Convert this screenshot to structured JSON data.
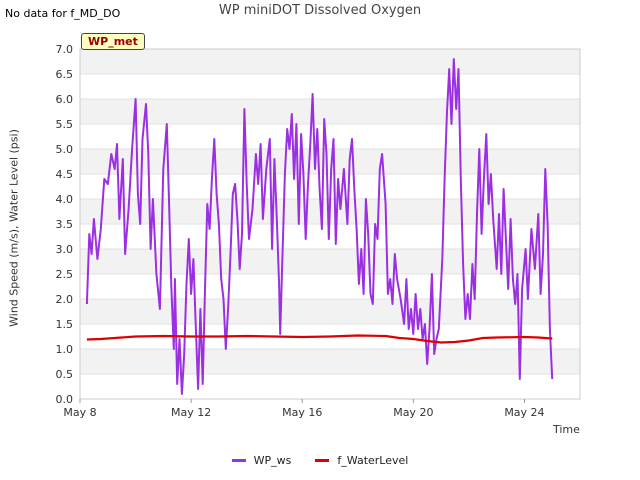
{
  "note": "No data for f_MD_DO",
  "badge": "WP_met",
  "chart_data": {
    "type": "line",
    "title": "WP miniDOT Dissolved Oxygen",
    "xlabel": "Time",
    "ylabel": "Wind Speed (m/s), Water Level (psi)",
    "xlim": [
      "2024-05-08",
      "2024-05-26"
    ],
    "ylim": [
      0,
      7
    ],
    "yticks": [
      0.0,
      0.5,
      1.0,
      1.5,
      2.0,
      2.5,
      3.0,
      3.5,
      4.0,
      4.5,
      5.0,
      5.5,
      6.0,
      6.5,
      7.0
    ],
    "ytick_labels": [
      "0.0",
      "0.5",
      "1.0",
      "1.5",
      "2.0",
      "2.5",
      "3.0",
      "3.5",
      "4.0",
      "4.5",
      "5.0",
      "5.5",
      "6.0",
      "6.5",
      "7.0"
    ],
    "xticks": [
      "2024-05-08",
      "2024-05-12",
      "2024-05-16",
      "2024-05-20",
      "2024-05-24"
    ],
    "xtick_labels": [
      "May 8",
      "May 12",
      "May 16",
      "May 20",
      "May 24"
    ],
    "grid": true,
    "legend_position": "bottom",
    "series": [
      {
        "name": "WP_ws",
        "color": "#9b30e0",
        "points": [
          [
            "2024-05-08 06:00",
            1.9
          ],
          [
            "2024-05-08 08:00",
            3.3
          ],
          [
            "2024-05-08 10:00",
            2.9
          ],
          [
            "2024-05-08 12:00",
            3.6
          ],
          [
            "2024-05-08 15:00",
            2.8
          ],
          [
            "2024-05-08 18:00",
            3.4
          ],
          [
            "2024-05-08 21:00",
            4.4
          ],
          [
            "2024-05-09 00:00",
            4.3
          ],
          [
            "2024-05-09 03:00",
            4.9
          ],
          [
            "2024-05-09 06:00",
            4.6
          ],
          [
            "2024-05-09 08:00",
            5.1
          ],
          [
            "2024-05-09 10:00",
            3.6
          ],
          [
            "2024-05-09 13:00",
            4.8
          ],
          [
            "2024-05-09 15:00",
            2.9
          ],
          [
            "2024-05-09 18:00",
            3.8
          ],
          [
            "2024-05-09 21:00",
            5.0
          ],
          [
            "2024-05-10 00:00",
            6.0
          ],
          [
            "2024-05-10 02:00",
            4.1
          ],
          [
            "2024-05-10 04:00",
            3.5
          ],
          [
            "2024-05-10 06:00",
            5.2
          ],
          [
            "2024-05-10 09:00",
            5.9
          ],
          [
            "2024-05-10 11:00",
            4.9
          ],
          [
            "2024-05-10 13:00",
            3.0
          ],
          [
            "2024-05-10 15:00",
            4.0
          ],
          [
            "2024-05-10 18:00",
            2.5
          ],
          [
            "2024-05-10 21:00",
            1.8
          ],
          [
            "2024-05-11 00:00",
            4.6
          ],
          [
            "2024-05-11 03:00",
            5.5
          ],
          [
            "2024-05-11 05:00",
            3.9
          ],
          [
            "2024-05-11 07:00",
            2.2
          ],
          [
            "2024-05-11 09:00",
            1.0
          ],
          [
            "2024-05-11 10:00",
            2.4
          ],
          [
            "2024-05-11 12:00",
            0.3
          ],
          [
            "2024-05-11 14:00",
            1.2
          ],
          [
            "2024-05-11 16:00",
            0.1
          ],
          [
            "2024-05-11 18:00",
            0.9
          ],
          [
            "2024-05-11 20:00",
            2.3
          ],
          [
            "2024-05-11 22:00",
            3.2
          ],
          [
            "2024-05-12 00:00",
            2.1
          ],
          [
            "2024-05-12 02:00",
            2.8
          ],
          [
            "2024-05-12 04:00",
            1.5
          ],
          [
            "2024-05-12 06:00",
            0.2
          ],
          [
            "2024-05-12 08:00",
            1.8
          ],
          [
            "2024-05-12 10:00",
            0.3
          ],
          [
            "2024-05-12 12:00",
            2.2
          ],
          [
            "2024-05-12 14:00",
            3.9
          ],
          [
            "2024-05-12 16:00",
            3.4
          ],
          [
            "2024-05-12 18:00",
            4.4
          ],
          [
            "2024-05-12 20:00",
            5.2
          ],
          [
            "2024-05-12 22:00",
            4.1
          ],
          [
            "2024-05-13 00:00",
            3.5
          ],
          [
            "2024-05-13 02:00",
            2.4
          ],
          [
            "2024-05-13 04:00",
            2.0
          ],
          [
            "2024-05-13 06:00",
            1.0
          ],
          [
            "2024-05-13 08:00",
            1.8
          ],
          [
            "2024-05-13 10:00",
            2.9
          ],
          [
            "2024-05-13 12:00",
            4.1
          ],
          [
            "2024-05-13 14:00",
            4.3
          ],
          [
            "2024-05-13 16:00",
            3.6
          ],
          [
            "2024-05-13 18:00",
            2.6
          ],
          [
            "2024-05-13 20:00",
            3.3
          ],
          [
            "2024-05-13 22:00",
            5.8
          ],
          [
            "2024-05-14 00:00",
            4.3
          ],
          [
            "2024-05-14 02:00",
            3.2
          ],
          [
            "2024-05-14 05:00",
            3.8
          ],
          [
            "2024-05-14 08:00",
            4.9
          ],
          [
            "2024-05-14 10:00",
            4.3
          ],
          [
            "2024-05-14 12:00",
            5.1
          ],
          [
            "2024-05-14 14:00",
            3.6
          ],
          [
            "2024-05-14 17:00",
            4.6
          ],
          [
            "2024-05-14 20:00",
            5.2
          ],
          [
            "2024-05-14 22:00",
            3.0
          ],
          [
            "2024-05-15 00:00",
            4.8
          ],
          [
            "2024-05-15 02:00",
            3.6
          ],
          [
            "2024-05-15 04:00",
            2.3
          ],
          [
            "2024-05-15 05:00",
            1.3
          ],
          [
            "2024-05-15 07:00",
            2.9
          ],
          [
            "2024-05-15 09:00",
            4.5
          ],
          [
            "2024-05-15 11:00",
            5.4
          ],
          [
            "2024-05-15 13:00",
            5.0
          ],
          [
            "2024-05-15 15:00",
            5.7
          ],
          [
            "2024-05-15 17:00",
            4.4
          ],
          [
            "2024-05-15 19:00",
            5.5
          ],
          [
            "2024-05-15 21:00",
            3.5
          ],
          [
            "2024-05-15 23:00",
            5.3
          ],
          [
            "2024-05-16 01:00",
            4.5
          ],
          [
            "2024-05-16 03:00",
            3.2
          ],
          [
            "2024-05-16 05:00",
            4.3
          ],
          [
            "2024-05-16 07:00",
            5.1
          ],
          [
            "2024-05-16 09:00",
            6.1
          ],
          [
            "2024-05-16 11:00",
            4.6
          ],
          [
            "2024-05-16 13:00",
            5.4
          ],
          [
            "2024-05-16 15:00",
            4.2
          ],
          [
            "2024-05-16 17:00",
            3.4
          ],
          [
            "2024-05-16 19:00",
            5.6
          ],
          [
            "2024-05-16 21:00",
            4.9
          ],
          [
            "2024-05-16 23:00",
            3.2
          ],
          [
            "2024-05-17 01:00",
            4.6
          ],
          [
            "2024-05-17 03:00",
            5.2
          ],
          [
            "2024-05-17 05:00",
            3.1
          ],
          [
            "2024-05-17 07:00",
            4.4
          ],
          [
            "2024-05-17 09:00",
            3.8
          ],
          [
            "2024-05-17 12:00",
            4.6
          ],
          [
            "2024-05-17 15:00",
            3.5
          ],
          [
            "2024-05-17 17:00",
            4.8
          ],
          [
            "2024-05-17 19:00",
            5.2
          ],
          [
            "2024-05-17 21:00",
            4.2
          ],
          [
            "2024-05-17 23:00",
            3.4
          ],
          [
            "2024-05-18 01:00",
            2.3
          ],
          [
            "2024-05-18 03:00",
            3.0
          ],
          [
            "2024-05-18 05:00",
            2.1
          ],
          [
            "2024-05-18 07:00",
            4.0
          ],
          [
            "2024-05-18 09:00",
            3.3
          ],
          [
            "2024-05-18 11:00",
            2.1
          ],
          [
            "2024-05-18 13:00",
            1.9
          ],
          [
            "2024-05-18 15:00",
            3.5
          ],
          [
            "2024-05-18 17:00",
            3.2
          ],
          [
            "2024-05-18 19:00",
            4.6
          ],
          [
            "2024-05-18 21:00",
            4.9
          ],
          [
            "2024-05-19 00:00",
            3.9
          ],
          [
            "2024-05-19 02:00",
            2.1
          ],
          [
            "2024-05-19 04:00",
            2.4
          ],
          [
            "2024-05-19 06:00",
            1.9
          ],
          [
            "2024-05-19 08:00",
            2.9
          ],
          [
            "2024-05-19 10:00",
            2.4
          ],
          [
            "2024-05-19 13:00",
            2.0
          ],
          [
            "2024-05-19 16:00",
            1.5
          ],
          [
            "2024-05-19 18:00",
            2.4
          ],
          [
            "2024-05-19 20:00",
            1.4
          ],
          [
            "2024-05-19 22:00",
            1.8
          ],
          [
            "2024-05-20 00:00",
            1.3
          ],
          [
            "2024-05-20 02:00",
            2.1
          ],
          [
            "2024-05-20 04:00",
            1.4
          ],
          [
            "2024-05-20 06:00",
            1.8
          ],
          [
            "2024-05-20 08:00",
            1.2
          ],
          [
            "2024-05-20 10:00",
            1.5
          ],
          [
            "2024-05-20 12:00",
            0.7
          ],
          [
            "2024-05-20 14:00",
            1.4
          ],
          [
            "2024-05-20 16:00",
            2.5
          ],
          [
            "2024-05-20 18:00",
            0.9
          ],
          [
            "2024-05-20 20:00",
            1.2
          ],
          [
            "2024-05-20 22:00",
            1.4
          ],
          [
            "2024-05-21 01:00",
            2.8
          ],
          [
            "2024-05-21 03:00",
            4.4
          ],
          [
            "2024-05-21 05:00",
            5.7
          ],
          [
            "2024-05-21 07:00",
            6.6
          ],
          [
            "2024-05-21 09:00",
            5.5
          ],
          [
            "2024-05-21 11:00",
            6.8
          ],
          [
            "2024-05-21 13:00",
            5.8
          ],
          [
            "2024-05-21 15:00",
            6.6
          ],
          [
            "2024-05-21 17:00",
            4.4
          ],
          [
            "2024-05-21 19:00",
            2.7
          ],
          [
            "2024-05-21 21:00",
            1.6
          ],
          [
            "2024-05-21 23:00",
            2.1
          ],
          [
            "2024-05-22 01:00",
            1.6
          ],
          [
            "2024-05-22 03:00",
            2.7
          ],
          [
            "2024-05-22 05:00",
            2.0
          ],
          [
            "2024-05-22 07:00",
            3.7
          ],
          [
            "2024-05-22 09:00",
            5.0
          ],
          [
            "2024-05-22 11:00",
            3.3
          ],
          [
            "2024-05-22 13:00",
            4.4
          ],
          [
            "2024-05-22 15:00",
            5.3
          ],
          [
            "2024-05-22 17:00",
            3.9
          ],
          [
            "2024-05-22 19:00",
            4.5
          ],
          [
            "2024-05-22 21:00",
            3.6
          ],
          [
            "2024-05-23 00:00",
            2.6
          ],
          [
            "2024-05-23 02:00",
            3.7
          ],
          [
            "2024-05-23 04:00",
            2.5
          ],
          [
            "2024-05-23 06:00",
            4.2
          ],
          [
            "2024-05-23 08:00",
            3.2
          ],
          [
            "2024-05-23 10:00",
            2.2
          ],
          [
            "2024-05-23 12:00",
            3.6
          ],
          [
            "2024-05-23 14:00",
            2.4
          ],
          [
            "2024-05-23 16:00",
            1.9
          ],
          [
            "2024-05-23 18:00",
            2.5
          ],
          [
            "2024-05-23 20:00",
            0.4
          ],
          [
            "2024-05-23 22:00",
            2.2
          ],
          [
            "2024-05-24 01:00",
            3.0
          ],
          [
            "2024-05-24 03:00",
            2.0
          ],
          [
            "2024-05-24 06:00",
            3.4
          ],
          [
            "2024-05-24 09:00",
            2.6
          ],
          [
            "2024-05-24 12:00",
            3.7
          ],
          [
            "2024-05-24 14:00",
            2.1
          ],
          [
            "2024-05-24 16:00",
            2.9
          ],
          [
            "2024-05-24 18:00",
            4.6
          ],
          [
            "2024-05-24 20:00",
            3.5
          ],
          [
            "2024-05-24 22:00",
            1.4
          ],
          [
            "2024-05-25 00:00",
            0.4
          ]
        ]
      },
      {
        "name": "f_WaterLevel",
        "color": "#dd0000",
        "points": [
          [
            "2024-05-08 06:00",
            1.19
          ],
          [
            "2024-05-08 18:00",
            1.2
          ],
          [
            "2024-05-09 12:00",
            1.23
          ],
          [
            "2024-05-10 00:00",
            1.25
          ],
          [
            "2024-05-11 00:00",
            1.26
          ],
          [
            "2024-05-12 00:00",
            1.25
          ],
          [
            "2024-05-13 00:00",
            1.25
          ],
          [
            "2024-05-14 00:00",
            1.26
          ],
          [
            "2024-05-15 00:00",
            1.25
          ],
          [
            "2024-05-16 00:00",
            1.24
          ],
          [
            "2024-05-17 00:00",
            1.25
          ],
          [
            "2024-05-18 00:00",
            1.27
          ],
          [
            "2024-05-19 00:00",
            1.26
          ],
          [
            "2024-05-19 12:00",
            1.22
          ],
          [
            "2024-05-20 00:00",
            1.2
          ],
          [
            "2024-05-20 12:00",
            1.16
          ],
          [
            "2024-05-21 00:00",
            1.13
          ],
          [
            "2024-05-21 12:00",
            1.14
          ],
          [
            "2024-05-22 00:00",
            1.17
          ],
          [
            "2024-05-22 12:00",
            1.22
          ],
          [
            "2024-05-23 00:00",
            1.23
          ],
          [
            "2024-05-24 00:00",
            1.24
          ],
          [
            "2024-05-24 12:00",
            1.23
          ],
          [
            "2024-05-25 00:00",
            1.21
          ]
        ]
      }
    ]
  }
}
